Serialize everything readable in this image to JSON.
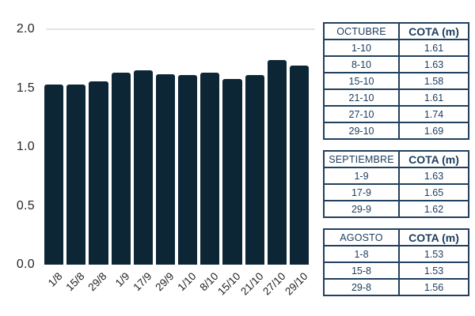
{
  "chart_data": {
    "type": "bar",
    "title": "",
    "xlabel": "",
    "ylabel": "",
    "categories": [
      "1/8",
      "15/8",
      "29/8",
      "1/9",
      "17/9",
      "29/9",
      "1/10",
      "8/10",
      "15/10",
      "21/10",
      "27/10",
      "29/10"
    ],
    "values": [
      1.53,
      1.53,
      1.56,
      1.63,
      1.65,
      1.62,
      1.61,
      1.63,
      1.58,
      1.61,
      1.74,
      1.69
    ],
    "ylim": [
      0,
      2.0
    ],
    "yticks": [
      0,
      0.5,
      1.0,
      1.5,
      2.0
    ],
    "ytick_labels": [
      "0.0",
      "0.5",
      "1.0",
      "1.5",
      "2.0"
    ],
    "gridlines_at": [
      2.0
    ],
    "grid_on": false,
    "legend": null,
    "bar_color": "#0d2636",
    "grid_color": "#e4e4e4"
  },
  "tables": [
    {
      "month_header": "OCTUBRE",
      "value_header": "COTA (m)",
      "rows": [
        [
          "1-10",
          "1.61"
        ],
        [
          "8-10",
          "1.63"
        ],
        [
          "15-10",
          "1.58"
        ],
        [
          "21-10",
          "1.61"
        ],
        [
          "27-10",
          "1.74"
        ],
        [
          "29-10",
          "1.69"
        ]
      ]
    },
    {
      "month_header": "SEPTIEMBRE",
      "value_header": "COTA (m)",
      "rows": [
        [
          "1-9",
          "1.63"
        ],
        [
          "17-9",
          "1.65"
        ],
        [
          "29-9",
          "1.62"
        ]
      ]
    },
    {
      "month_header": "AGOSTO",
      "value_header": "COTA (m)",
      "rows": [
        [
          "1-8",
          "1.53"
        ],
        [
          "15-8",
          "1.53"
        ],
        [
          "29-8",
          "1.56"
        ]
      ]
    }
  ],
  "table_style": {
    "border_color": "#21405e",
    "text_color": "#1e3e60"
  }
}
